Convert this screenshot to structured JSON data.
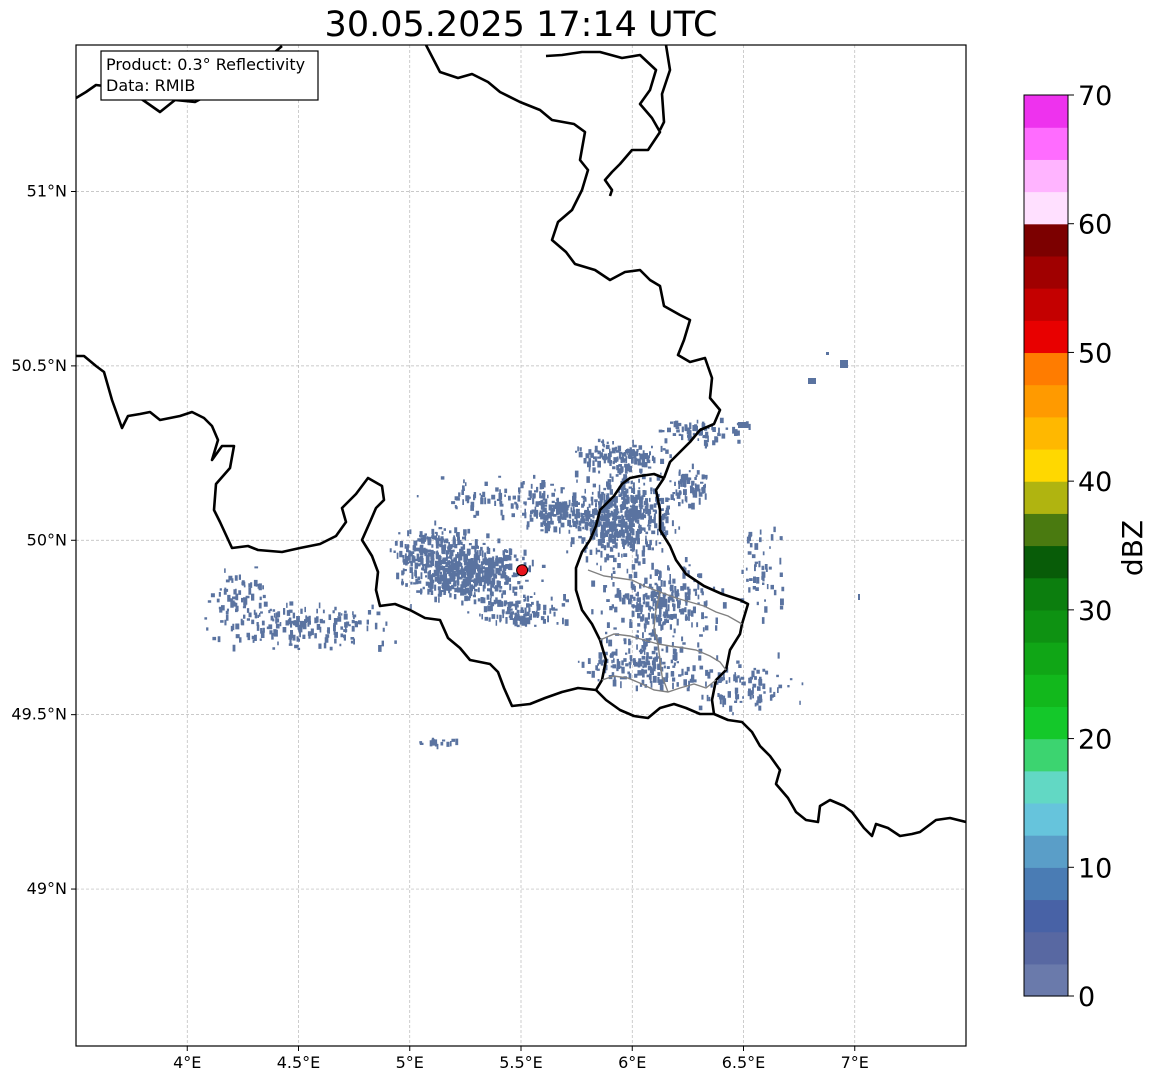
{
  "title": "30.05.2025 17:14 UTC",
  "info_box": {
    "product": "Product: 0.3° Reflectivity",
    "data": "Data: RMIB"
  },
  "map": {
    "lon_range": [
      3.5,
      7.5
    ],
    "lat_range": [
      48.55,
      51.42
    ],
    "grid": true,
    "lon_ticks": [
      {
        "value": 4.0,
        "label": "4°E"
      },
      {
        "value": 4.5,
        "label": "4.5°E"
      },
      {
        "value": 5.0,
        "label": "5°E"
      },
      {
        "value": 5.5,
        "label": "5.5°E"
      },
      {
        "value": 6.0,
        "label": "6°E"
      },
      {
        "value": 6.5,
        "label": "6.5°E"
      },
      {
        "value": 7.0,
        "label": "7°E"
      }
    ],
    "lat_ticks": [
      {
        "value": 49.0,
        "label": "49°N"
      },
      {
        "value": 49.5,
        "label": "49.5°N"
      },
      {
        "value": 50.0,
        "label": "50°N"
      },
      {
        "value": 50.5,
        "label": "50.5°N"
      },
      {
        "value": 51.0,
        "label": "51°N"
      }
    ],
    "radar_site": {
      "lon": 5.505,
      "lat": 49.914,
      "color": "#e8141c"
    },
    "echo_color": "#5a73a0",
    "border_color": "#000000",
    "region_border_color": "#808080"
  },
  "colorbar": {
    "label": "dBZ",
    "min": 0,
    "max": 70,
    "step": 2.5,
    "ticks": [
      {
        "value": 0,
        "label": "0"
      },
      {
        "value": 10,
        "label": "10"
      },
      {
        "value": 20,
        "label": "20"
      },
      {
        "value": 30,
        "label": "30"
      },
      {
        "value": 40,
        "label": "40"
      },
      {
        "value": 50,
        "label": "50"
      },
      {
        "value": 60,
        "label": "60"
      },
      {
        "value": 70,
        "label": "70"
      }
    ],
    "colors": [
      "#6a7aab",
      "#5868a2",
      "#4862a6",
      "#4a7cb4",
      "#5a9ec8",
      "#66c4dc",
      "#62d8c4",
      "#3cd470",
      "#14c82a",
      "#12b81c",
      "#10a616",
      "#0e9212",
      "#0c7e0e",
      "#085c08",
      "#4a7a10",
      "#b0b410",
      "#ffd800",
      "#ffb800",
      "#ff9a00",
      "#ff7c00",
      "#e80000",
      "#c40000",
      "#a00000",
      "#7c0000",
      "#ffe0ff",
      "#ffb4ff",
      "#ff6cff",
      "#ee32ee"
    ]
  }
}
